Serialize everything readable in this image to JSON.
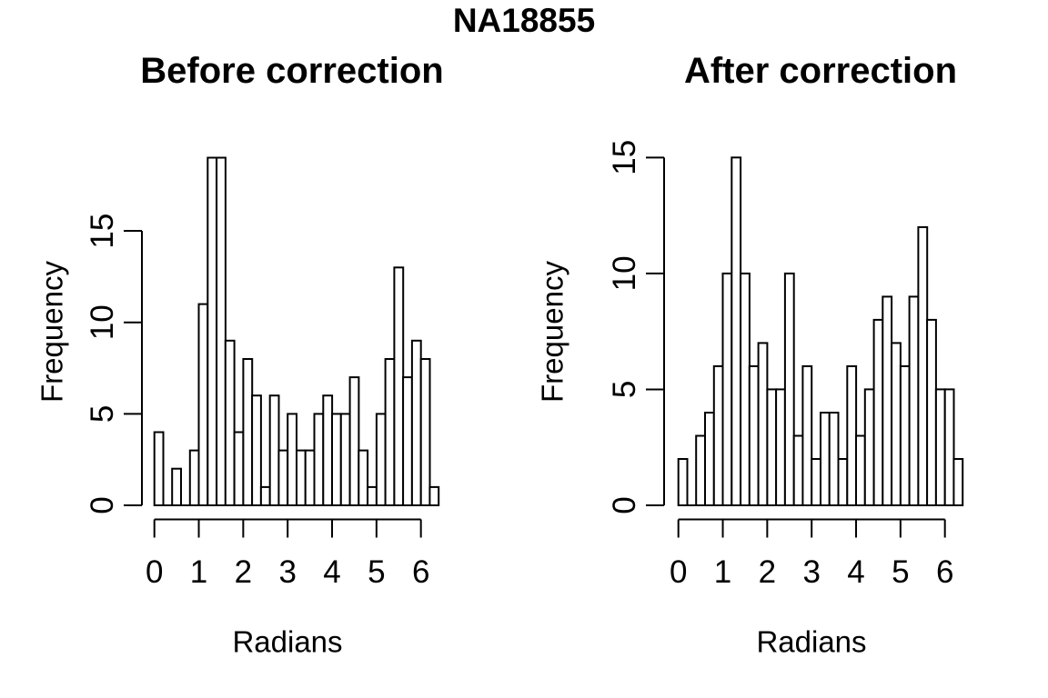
{
  "figure": {
    "main_title": "NA18855"
  },
  "colors": {
    "foreground": "#000000",
    "background": "#ffffff",
    "bar_fill": "#ffffff",
    "bar_stroke": "#000000"
  },
  "chart_data": [
    {
      "type": "bar",
      "subtype": "histogram",
      "title": "Before correction",
      "xlabel": "Radians",
      "ylabel": "Frequency",
      "bin_start": 0.0,
      "bin_width": 0.2,
      "x_range": [
        0,
        6.4
      ],
      "ylim": [
        0,
        19
      ],
      "x_ticks": [
        0,
        1,
        2,
        3,
        4,
        5,
        6
      ],
      "y_ticks": [
        0,
        5,
        10,
        15
      ],
      "counts": [
        4,
        0,
        2,
        0,
        3,
        11,
        19,
        19,
        9,
        4,
        8,
        6,
        1,
        6,
        3,
        5,
        3,
        3,
        5,
        6,
        5,
        5,
        7,
        3,
        1,
        5,
        8,
        13,
        7,
        9,
        8,
        1
      ],
      "grid": false,
      "legend": "none"
    },
    {
      "type": "bar",
      "subtype": "histogram",
      "title": "After correction",
      "xlabel": "Radians",
      "ylabel": "Frequency",
      "bin_start": 0.0,
      "bin_width": 0.2,
      "x_range": [
        0,
        6.4
      ],
      "ylim": [
        0,
        15
      ],
      "x_ticks": [
        0,
        1,
        2,
        3,
        4,
        5,
        6
      ],
      "y_ticks": [
        0,
        5,
        10,
        15
      ],
      "counts": [
        2,
        0,
        3,
        4,
        6,
        10,
        15,
        10,
        6,
        7,
        5,
        5,
        10,
        3,
        6,
        2,
        4,
        4,
        2,
        6,
        3,
        5,
        8,
        9,
        7,
        6,
        9,
        12,
        8,
        5,
        5,
        2
      ],
      "grid": false,
      "legend": "none"
    }
  ]
}
